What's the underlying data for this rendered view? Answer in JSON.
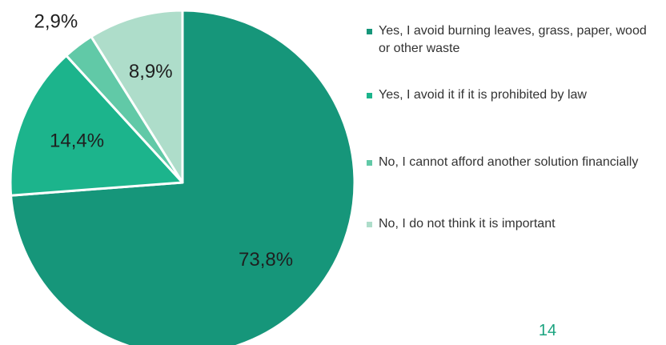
{
  "page": {
    "page_number": "14"
  },
  "chart_data": {
    "type": "pie",
    "title": "",
    "slices": [
      {
        "label": "Yes, I avoid burning leaves, grass, paper, wood or other waste",
        "value": 73.8,
        "value_label": "73,8%",
        "color": "#16967a"
      },
      {
        "label": "Yes, I avoid it if it is prohibited by law",
        "value": 14.4,
        "value_label": "14,4%",
        "color": "#1cb48c"
      },
      {
        "label": "No, I cannot afford another solution financially",
        "value": 2.9,
        "value_label": "2,9%",
        "color": "#61c9a7"
      },
      {
        "label": "No, I do not think it is important",
        "value": 8.9,
        "value_label": "8,9%",
        "color": "#aeddca"
      }
    ],
    "start_angle_deg": 0,
    "direction": "clockwise",
    "legend_position": "right"
  }
}
